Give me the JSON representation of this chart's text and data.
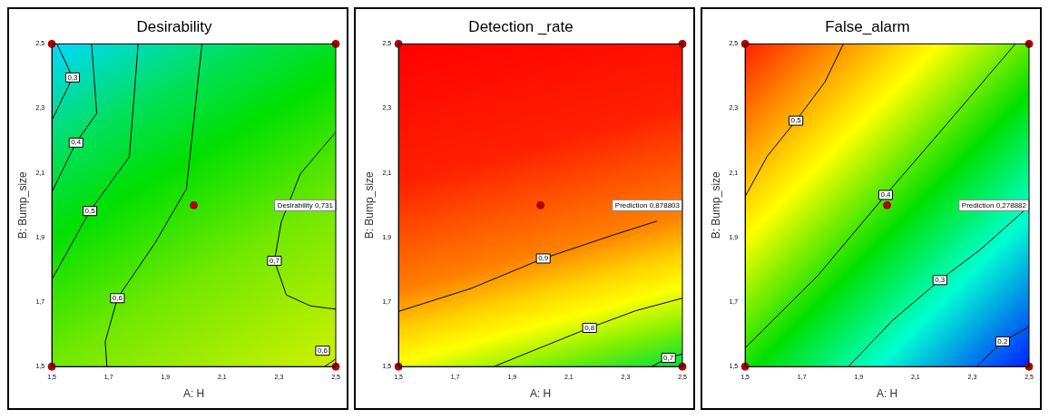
{
  "chart_data": [
    {
      "type": "line",
      "title": "Desirability",
      "xlabel": "A: H",
      "ylabel": "B: Bump_size",
      "xlim": [
        1.5,
        2.5
      ],
      "ylim": [
        1.5,
        2.5
      ],
      "xticks": [
        {
          "value": 1.5,
          "label": "1,5"
        },
        {
          "value": 1.7,
          "label": "1,7"
        },
        {
          "value": 1.9,
          "label": "1,9"
        },
        {
          "value": 2.1,
          "label": "2,1"
        },
        {
          "value": 2.3,
          "label": "2,3"
        },
        {
          "value": 2.5,
          "label": "2,5"
        }
      ],
      "yticks": [
        {
          "value": 1.5,
          "label": "1,5"
        },
        {
          "value": 1.7,
          "label": "1,7"
        },
        {
          "value": 1.9,
          "label": "1,9"
        },
        {
          "value": 2.1,
          "label": "2,1"
        },
        {
          "value": 2.3,
          "label": "2,3"
        },
        {
          "value": 2.5,
          "label": "2,5"
        }
      ],
      "series": [
        {
          "name": "0,3",
          "color": "#000000",
          "x": [
            1.518,
            1.573,
            1.5
          ],
          "values": [
            2.5,
            2.396,
            2.263
          ]
        },
        {
          "name": "0,4",
          "color": "#000000",
          "x": [
            1.64,
            1.658,
            1.585,
            1.5
          ],
          "values": [
            2.5,
            2.285,
            2.194,
            2.041
          ]
        },
        {
          "name": "0,5",
          "color": "#000000",
          "x": [
            1.804,
            1.773,
            1.634,
            1.5
          ],
          "values": [
            2.5,
            2.15,
            1.982,
            1.77
          ]
        },
        {
          "name": "0,6",
          "color": "#000000",
          "x": [
            2.029,
            1.974,
            1.865,
            1.731,
            1.688,
            1.694
          ],
          "values": [
            2.5,
            2.051,
            1.885,
            1.712,
            1.577,
            1.5
          ]
        },
        {
          "name": "0,7",
          "color": "#000000",
          "x": [
            2.5,
            2.375,
            2.308,
            2.284,
            2.326,
            2.411,
            2.5
          ],
          "values": [
            2.227,
            2.097,
            1.948,
            1.828,
            1.722,
            1.688,
            1.678
          ]
        },
        {
          "name": "0,6",
          "color": "#000000",
          "x": [
            2.46,
            2.484,
            2.5
          ],
          "values": [
            1.5,
            1.514,
            1.524
          ]
        },
        {
          "type": "scatter",
          "marker": "circle",
          "color": "#b00000",
          "x": [
            1.5,
            2.5,
            2.0,
            1.5,
            2.5
          ],
          "values": [
            2.5,
            2.5,
            2.0,
            1.5,
            1.5
          ]
        }
      ],
      "annotations": [
        "Desirability 0,731"
      ]
    },
    {
      "type": "line",
      "title": "Detection _rate",
      "xlabel": "A: H",
      "ylabel": "B: Bump_size",
      "xlim": [
        1.5,
        2.5
      ],
      "ylim": [
        1.5,
        2.5
      ],
      "xticks": [
        {
          "value": 1.5,
          "label": "1,5"
        },
        {
          "value": 1.7,
          "label": "1,7"
        },
        {
          "value": 1.9,
          "label": "1,9"
        },
        {
          "value": 2.1,
          "label": "2,1"
        },
        {
          "value": 2.3,
          "label": "2,3"
        },
        {
          "value": 2.5,
          "label": "2,5"
        }
      ],
      "yticks": [
        {
          "value": 1.5,
          "label": "1,5"
        },
        {
          "value": 1.7,
          "label": "1,7"
        },
        {
          "value": 1.9,
          "label": "1,9"
        },
        {
          "value": 2.1,
          "label": "2,1"
        },
        {
          "value": 2.3,
          "label": "2,3"
        },
        {
          "value": 2.5,
          "label": "2,5"
        }
      ],
      "series": [
        {
          "name": "0,9",
          "color": "#000000",
          "x": [
            1.5,
            1.755,
            2.01,
            2.254,
            2.411
          ],
          "values": [
            1.671,
            1.742,
            1.835,
            1.907,
            1.951
          ]
        },
        {
          "name": "0,8",
          "color": "#000000",
          "x": [
            1.836,
            1.987,
            2.173,
            2.335,
            2.5
          ],
          "values": [
            1.5,
            1.554,
            1.62,
            1.673,
            1.712
          ]
        },
        {
          "name": "0,7",
          "color": "#000000",
          "x": [
            2.391,
            2.451,
            2.5
          ],
          "values": [
            1.5,
            1.527,
            1.539
          ]
        },
        {
          "type": "scatter",
          "marker": "circle",
          "color": "#b00000",
          "x": [
            1.5,
            2.5,
            2.0,
            1.5,
            2.5
          ],
          "values": [
            2.5,
            2.5,
            2.0,
            1.5,
            1.5
          ]
        }
      ],
      "annotations": [
        "Prediction 0,878803"
      ]
    },
    {
      "type": "line",
      "title": "False_alarm",
      "xlabel": "A: H",
      "ylabel": "B: Bump_size",
      "xlim": [
        1.5,
        2.5
      ],
      "ylim": [
        1.5,
        2.5
      ],
      "xticks": [
        {
          "value": 1.5,
          "label": "1,5"
        },
        {
          "value": 1.7,
          "label": "1,7"
        },
        {
          "value": 1.9,
          "label": "1,9"
        },
        {
          "value": 2.1,
          "label": "2,1"
        },
        {
          "value": 2.3,
          "label": "2,3"
        },
        {
          "value": 2.5,
          "label": "2,5"
        }
      ],
      "yticks": [
        {
          "value": 1.5,
          "label": "1,5"
        },
        {
          "value": 1.7,
          "label": "1,7"
        },
        {
          "value": 1.9,
          "label": "1,9"
        },
        {
          "value": 2.1,
          "label": "2,1"
        },
        {
          "value": 2.3,
          "label": "2,3"
        },
        {
          "value": 2.5,
          "label": "2,5"
        }
      ],
      "series": [
        {
          "name": "0,5",
          "color": "#000000",
          "x": [
            1.846,
            1.781,
            1.679,
            1.578,
            1.5
          ],
          "values": [
            2.5,
            2.382,
            2.262,
            2.152,
            2.027
          ]
        },
        {
          "name": "0,4",
          "color": "#000000",
          "x": [
            2.452,
            2.21,
            1.995,
            1.757,
            1.5
          ],
          "values": [
            2.5,
            2.251,
            2.032,
            1.783,
            1.558
          ]
        },
        {
          "name": "0,3",
          "color": "#000000",
          "x": [
            2.5,
            2.329,
            2.186,
            2.019,
            1.864
          ],
          "values": [
            1.997,
            1.863,
            1.768,
            1.643,
            1.5
          ]
        },
        {
          "name": "0,2",
          "color": "#000000",
          "x": [
            2.5,
            2.407,
            2.317
          ],
          "values": [
            1.623,
            1.578,
            1.5
          ]
        },
        {
          "type": "scatter",
          "marker": "circle",
          "color": "#b00000",
          "x": [
            1.5,
            2.5,
            2.0,
            1.5,
            2.5
          ],
          "values": [
            2.5,
            2.5,
            2.0,
            1.5,
            1.5
          ]
        }
      ],
      "annotations": [
        "Prediction 0,278882"
      ]
    }
  ]
}
